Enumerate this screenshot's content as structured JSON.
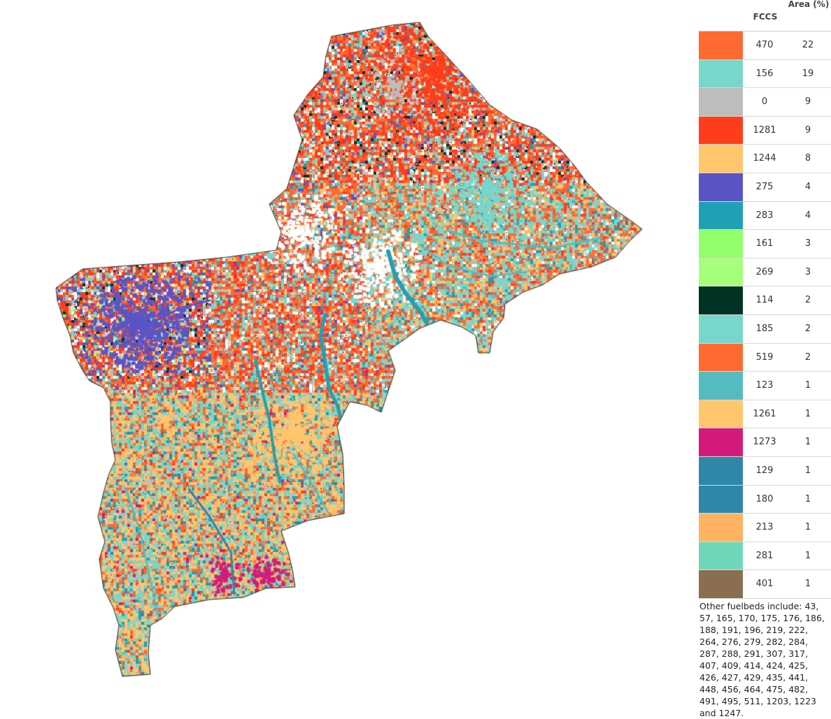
{
  "legend": {
    "header_fccs": "FCCS",
    "header_area": "Area (%)",
    "rows": [
      {
        "fccs": "470",
        "area": "22",
        "color": "#ff6a33"
      },
      {
        "fccs": "156",
        "area": "19",
        "color": "#78d6ca"
      },
      {
        "fccs": "0",
        "area": "9",
        "color": "#bdbdbd"
      },
      {
        "fccs": "1281",
        "area": "9",
        "color": "#ff3d1a"
      },
      {
        "fccs": "1244",
        "area": "8",
        "color": "#ffc66e"
      },
      {
        "fccs": "275",
        "area": "4",
        "color": "#5a55c6"
      },
      {
        "fccs": "283",
        "area": "4",
        "color": "#1fa0b5"
      },
      {
        "fccs": "161",
        "area": "3",
        "color": "#90ff6a"
      },
      {
        "fccs": "269",
        "area": "3",
        "color": "#a6ff7b"
      },
      {
        "fccs": "114",
        "area": "2",
        "color": "#003323"
      },
      {
        "fccs": "185",
        "area": "2",
        "color": "#78d6ca"
      },
      {
        "fccs": "519",
        "area": "2",
        "color": "#ff6a33"
      },
      {
        "fccs": "123",
        "area": "1",
        "color": "#54bcc1"
      },
      {
        "fccs": "1261",
        "area": "1",
        "color": "#ffc66e"
      },
      {
        "fccs": "1273",
        "area": "1",
        "color": "#d41b7c"
      },
      {
        "fccs": "129",
        "area": "1",
        "color": "#2f87a8"
      },
      {
        "fccs": "180",
        "area": "1",
        "color": "#2f87a8"
      },
      {
        "fccs": "213",
        "area": "1",
        "color": "#ffb261"
      },
      {
        "fccs": "281",
        "area": "1",
        "color": "#70d6ba"
      },
      {
        "fccs": "401",
        "area": "1",
        "color": "#8b6e4f"
      }
    ],
    "other_note": "Other fuelbeds include: 43, 57, 165, 170, 175, 176, 186, 188, 191, 196, 219, 222, 264, 276, 279, 282, 284, 287, 288, 291, 307, 317, 407, 409, 414, 424, 425, 426, 427, 429, 435, 441, 448, 456, 464, 475, 482, 491, 495, 511, 1203, 1223 and 1247."
  }
}
